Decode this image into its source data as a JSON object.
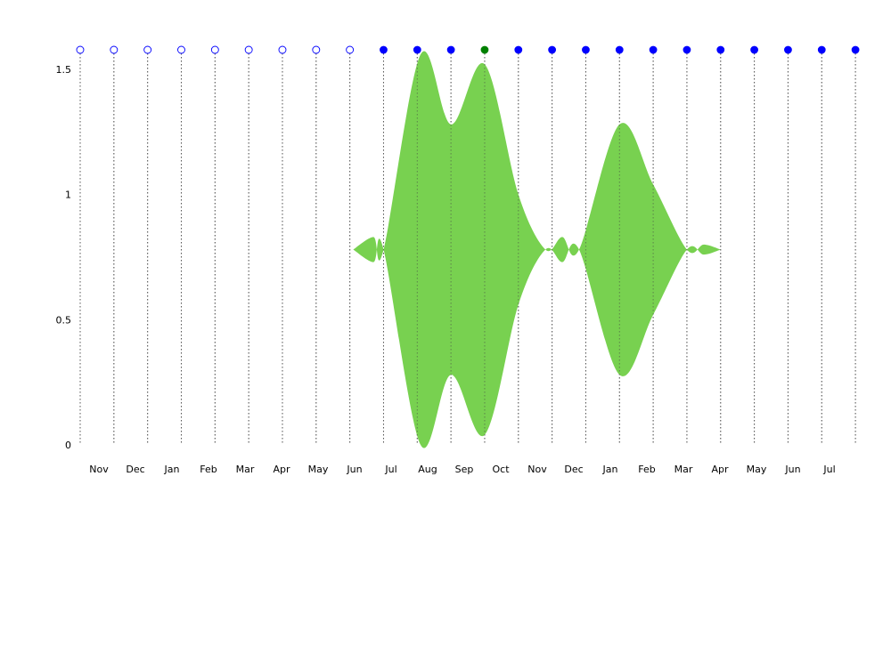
{
  "chart_data": {
    "type": "area",
    "colors": {
      "area": "#78d150",
      "marker_empty_stroke": "#0000ff",
      "marker_filled": "#0000ff",
      "marker_highlight": "#008000",
      "gridline": "#666666"
    },
    "ylim": [
      0,
      1.6
    ],
    "y_ticks": [
      0,
      0.5,
      1,
      1.5
    ],
    "y_tick_labels": [
      "0",
      "0.5",
      "1",
      "1.5"
    ],
    "grid": "vertical dotted lines at each marker",
    "x_tick_labels": [
      "Nov",
      "Dec",
      "Jan",
      "Feb",
      "Mar",
      "Apr",
      "May",
      "Jun",
      "Jul",
      "Aug",
      "Sep",
      "Oct",
      "Nov",
      "Dec",
      "Jan",
      "Feb",
      "Mar",
      "Apr",
      "May",
      "Jun",
      "Jul"
    ],
    "markers": [
      {
        "state": "empty"
      },
      {
        "state": "empty"
      },
      {
        "state": "empty"
      },
      {
        "state": "empty"
      },
      {
        "state": "empty"
      },
      {
        "state": "empty"
      },
      {
        "state": "empty"
      },
      {
        "state": "empty"
      },
      {
        "state": "empty"
      },
      {
        "state": "filled"
      },
      {
        "state": "filled"
      },
      {
        "state": "filled"
      },
      {
        "state": "highlight"
      },
      {
        "state": "filled"
      },
      {
        "state": "filled"
      },
      {
        "state": "filled"
      },
      {
        "state": "filled"
      },
      {
        "state": "filled"
      },
      {
        "state": "filled"
      },
      {
        "state": "filled"
      },
      {
        "state": "filled"
      },
      {
        "state": "filled"
      },
      {
        "state": "filled"
      },
      {
        "state": "filled"
      }
    ],
    "center": 0.78,
    "band_profile": [
      {
        "i": 8.1,
        "upper": 0.78,
        "lower": 0.78
      },
      {
        "i": 8.7,
        "upper": 0.83,
        "lower": 0.73
      },
      {
        "i": 9.0,
        "upper": 0.78,
        "lower": 0.78
      },
      {
        "i": 10.1,
        "upper": 1.56,
        "lower": 0.0
      },
      {
        "i": 11.0,
        "upper": 1.28,
        "lower": 0.28
      },
      {
        "i": 12.0,
        "upper": 1.52,
        "lower": 0.04
      },
      {
        "i": 13.0,
        "upper": 1.0,
        "lower": 0.56
      },
      {
        "i": 13.8,
        "upper": 0.78,
        "lower": 0.78
      },
      {
        "i": 14.3,
        "upper": 0.83,
        "lower": 0.73
      },
      {
        "i": 14.8,
        "upper": 0.78,
        "lower": 0.78
      },
      {
        "i": 16.0,
        "upper": 1.28,
        "lower": 0.28
      },
      {
        "i": 17.0,
        "upper": 1.04,
        "lower": 0.52
      },
      {
        "i": 18.0,
        "upper": 0.78,
        "lower": 0.78
      },
      {
        "i": 18.5,
        "upper": 0.8,
        "lower": 0.76
      },
      {
        "i": 19.0,
        "upper": 0.78,
        "lower": 0.78
      }
    ]
  }
}
